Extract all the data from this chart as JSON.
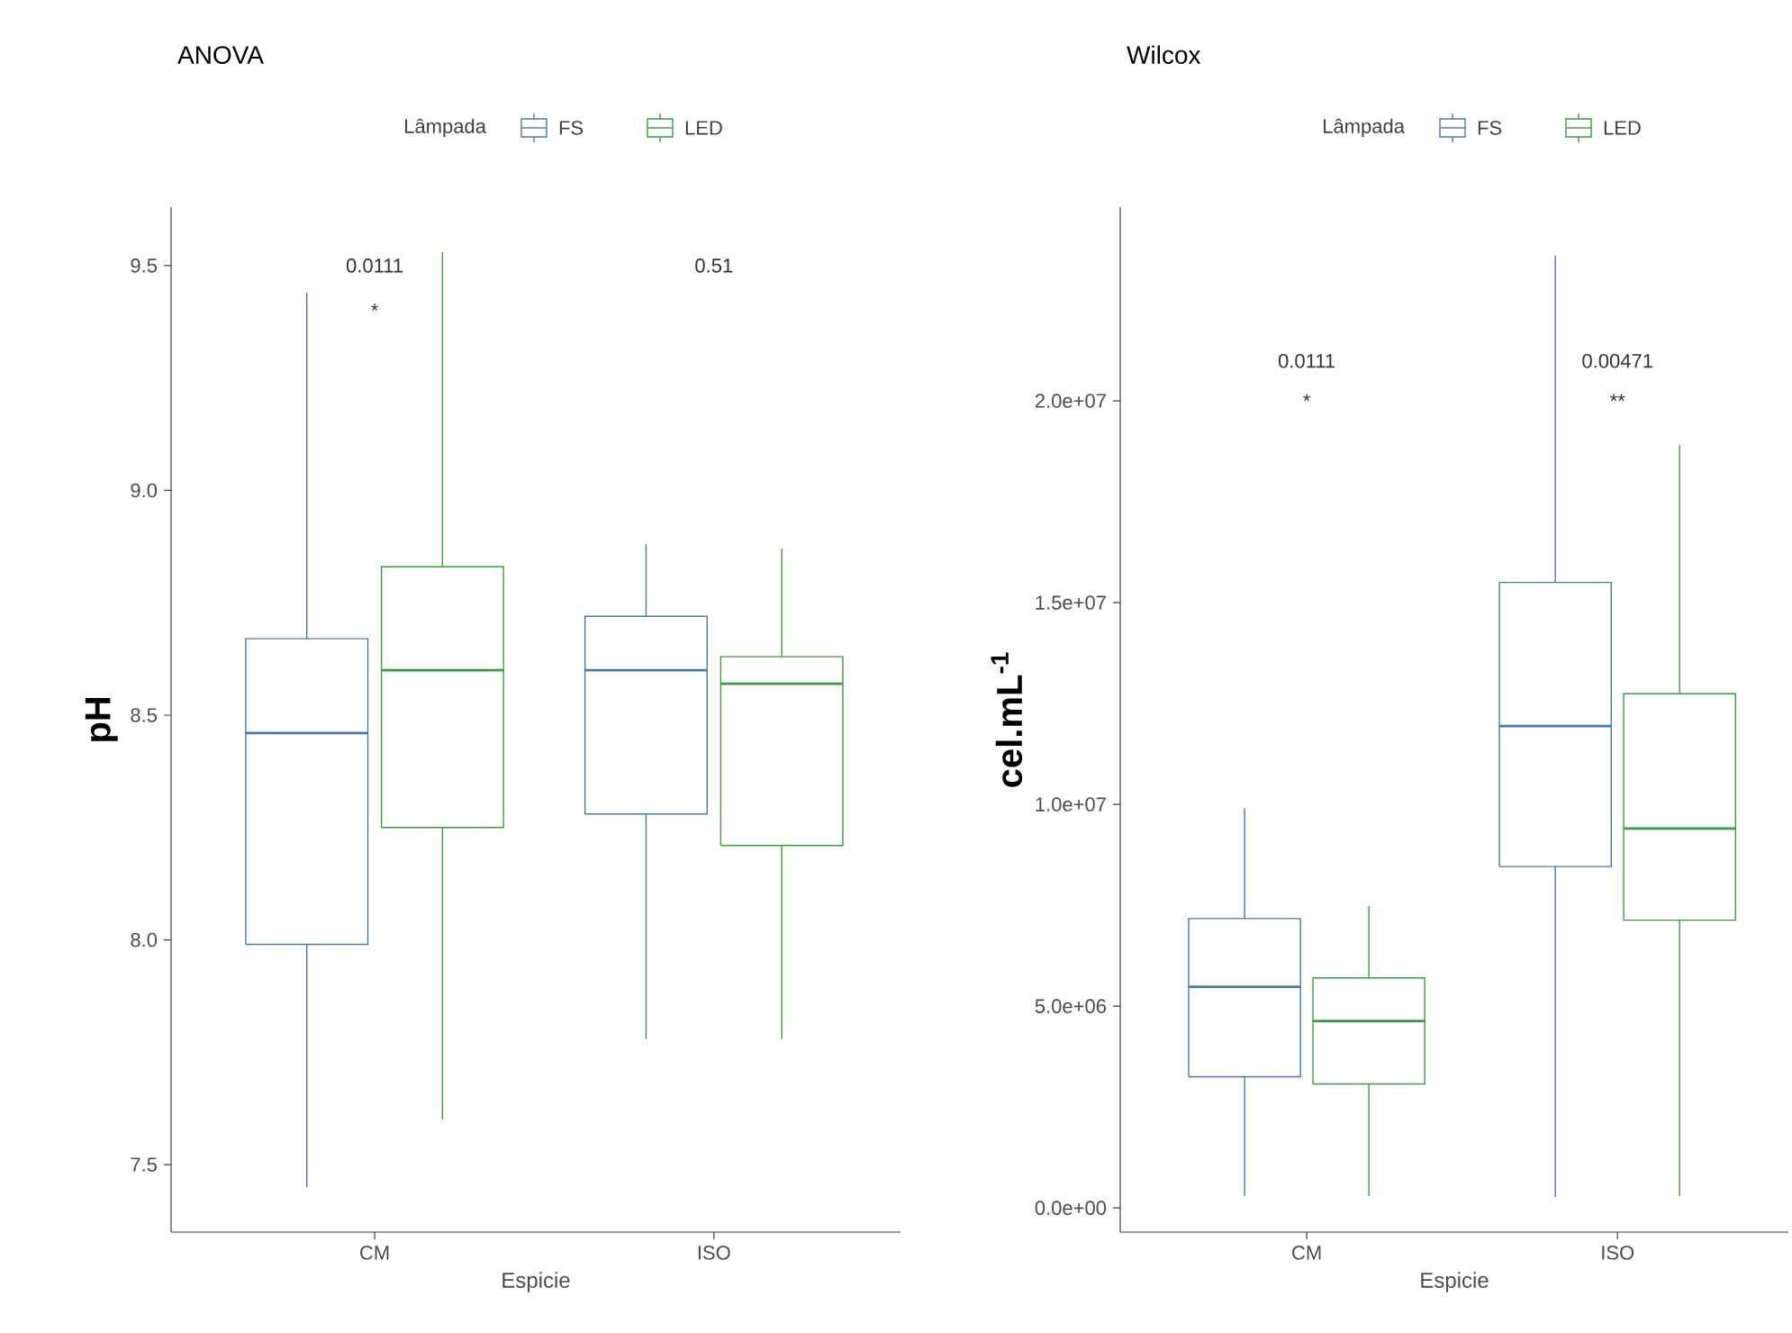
{
  "chart_data": [
    {
      "type": "box",
      "title": "ANOVA",
      "xlabel": "Espicie",
      "ylabel": "pH",
      "legend_title": "Lâmpada",
      "legend": "top",
      "grid": false,
      "categories": [
        "CM",
        "ISO"
      ],
      "ylim": [
        7.35,
        9.63
      ],
      "yticks": [
        {
          "value": 7.5,
          "label": "7.5"
        },
        {
          "value": 8,
          "label": "8.0"
        },
        {
          "value": 8.5,
          "label": "8.5"
        },
        {
          "value": 9,
          "label": "9.0"
        },
        {
          "value": 9.5,
          "label": "9.5"
        }
      ],
      "series": [
        {
          "name": "FS",
          "color": "#4a78a6",
          "boxes": [
            {
              "low": 7.45,
              "q1": 7.99,
              "median": 8.46,
              "q3": 8.67,
              "high": 9.44
            },
            {
              "low": 7.78,
              "q1": 8.28,
              "median": 8.6,
              "q3": 8.72,
              "high": 8.88
            }
          ]
        },
        {
          "name": "LED",
          "color": "#3d9a3d",
          "boxes": [
            {
              "low": 7.6,
              "q1": 8.25,
              "median": 8.6,
              "q3": 8.83,
              "high": 9.53
            },
            {
              "low": 7.78,
              "q1": 8.21,
              "median": 8.57,
              "q3": 8.63,
              "high": 8.87
            }
          ]
        }
      ],
      "annotations": [
        "0.0111",
        "*",
        "0.51"
      ]
    },
    {
      "type": "box",
      "title": "Wilcox",
      "xlabel": "Espicie",
      "ylabel": "cel.mL$^{-1}$",
      "legend_title": "Lâmpada",
      "legend": "top",
      "grid": false,
      "categories": [
        "CM",
        "ISO"
      ],
      "ylim": [
        -600000,
        24800000
      ],
      "yticks": [
        {
          "value": 0,
          "label": "0.0e+00"
        },
        {
          "value": 5000000,
          "label": "5.0e+06"
        },
        {
          "value": 10000000,
          "label": "1.0e+07"
        },
        {
          "value": 15000000,
          "label": "1.5e+07"
        },
        {
          "value": 20000000,
          "label": "2.0e+07"
        }
      ],
      "series": [
        {
          "name": "FS",
          "color": "#4a78a6",
          "boxes": [
            {
              "low": 300000,
              "q1": 3250000,
              "median": 5480000,
              "q3": 7170000,
              "high": 9900000
            },
            {
              "low": 270000,
              "q1": 8460000,
              "median": 11940000,
              "q3": 15500000,
              "high": 23600000
            }
          ]
        },
        {
          "name": "LED",
          "color": "#3d9a3d",
          "boxes": [
            {
              "low": 300000,
              "q1": 3070000,
              "median": 4630000,
              "q3": 5700000,
              "high": 7480000
            },
            {
              "low": 300000,
              "q1": 7130000,
              "median": 9400000,
              "q3": 12740000,
              "high": 18900000
            }
          ]
        }
      ],
      "annotations": [
        "0.0111",
        "*",
        "0.00471",
        "**"
      ]
    }
  ]
}
